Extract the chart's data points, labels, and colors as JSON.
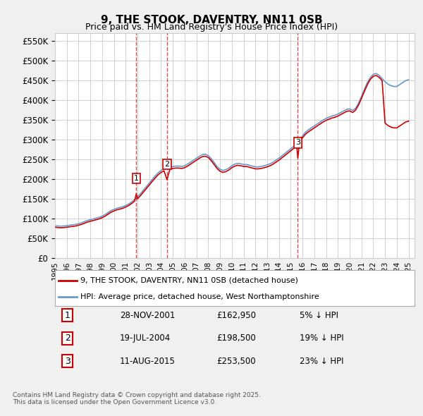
{
  "title": "9, THE STOOK, DAVENTRY, NN11 0SB",
  "subtitle": "Price paid vs. HM Land Registry's House Price Index (HPI)",
  "ylabel_ticks": [
    "£0",
    "£50K",
    "£100K",
    "£150K",
    "£200K",
    "£250K",
    "£300K",
    "£350K",
    "£400K",
    "£450K",
    "£500K",
    "£550K"
  ],
  "ylim": [
    0,
    570000
  ],
  "yticks": [
    0,
    50000,
    100000,
    150000,
    200000,
    250000,
    300000,
    350000,
    400000,
    450000,
    500000,
    550000
  ],
  "background_color": "#f0f0f0",
  "plot_bg_color": "#ffffff",
  "grid_color": "#d0d0d0",
  "line_color_red": "#cc0000",
  "line_color_blue": "#6699cc",
  "transaction_color": "#cc0000",
  "marker_label_bg": "#ffffff",
  "marker_label_border": "#cc0000",
  "legend_label_red": "9, THE STOOK, DAVENTRY, NN11 0SB (detached house)",
  "legend_label_blue": "HPI: Average price, detached house, West Northamptonshire",
  "transactions": [
    {
      "num": 1,
      "date_str": "28-NOV-2001",
      "price": 162950,
      "pct": "5%",
      "dir": "↓",
      "year": 2001.9
    },
    {
      "num": 2,
      "date_str": "19-JUL-2004",
      "price": 198500,
      "pct": "19%",
      "dir": "↓",
      "year": 2004.5
    },
    {
      "num": 3,
      "date_str": "11-AUG-2015",
      "price": 253500,
      "pct": "23%",
      "dir": "↓",
      "year": 2015.6
    }
  ],
  "footer_line1": "Contains HM Land Registry data © Crown copyright and database right 2025.",
  "footer_line2": "This data is licensed under the Open Government Licence v3.0.",
  "hpi_data": {
    "years": [
      1995.0,
      1995.25,
      1995.5,
      1995.75,
      1996.0,
      1996.25,
      1996.5,
      1996.75,
      1997.0,
      1997.25,
      1997.5,
      1997.75,
      1998.0,
      1998.25,
      1998.5,
      1998.75,
      1999.0,
      1999.25,
      1999.5,
      1999.75,
      2000.0,
      2000.25,
      2000.5,
      2000.75,
      2001.0,
      2001.25,
      2001.5,
      2001.75,
      2002.0,
      2002.25,
      2002.5,
      2002.75,
      2003.0,
      2003.25,
      2003.5,
      2003.75,
      2004.0,
      2004.25,
      2004.5,
      2004.75,
      2005.0,
      2005.25,
      2005.5,
      2005.75,
      2006.0,
      2006.25,
      2006.5,
      2006.75,
      2007.0,
      2007.25,
      2007.5,
      2007.75,
      2008.0,
      2008.25,
      2008.5,
      2008.75,
      2009.0,
      2009.25,
      2009.5,
      2009.75,
      2010.0,
      2010.25,
      2010.5,
      2010.75,
      2011.0,
      2011.25,
      2011.5,
      2011.75,
      2012.0,
      2012.25,
      2012.5,
      2012.75,
      2013.0,
      2013.25,
      2013.5,
      2013.75,
      2014.0,
      2014.25,
      2014.5,
      2014.75,
      2015.0,
      2015.25,
      2015.5,
      2015.75,
      2016.0,
      2016.25,
      2016.5,
      2016.75,
      2017.0,
      2017.25,
      2017.5,
      2017.75,
      2018.0,
      2018.25,
      2018.5,
      2018.75,
      2019.0,
      2019.25,
      2019.5,
      2019.75,
      2020.0,
      2020.25,
      2020.5,
      2020.75,
      2021.0,
      2021.25,
      2021.5,
      2021.75,
      2022.0,
      2022.25,
      2022.5,
      2022.75,
      2023.0,
      2023.25,
      2023.5,
      2023.75,
      2024.0,
      2024.25,
      2024.5,
      2024.75,
      2025.0
    ],
    "values": [
      82000,
      81000,
      80500,
      81000,
      82000,
      83000,
      84000,
      85000,
      87000,
      89000,
      92000,
      95000,
      97000,
      99000,
      101000,
      103000,
      106000,
      110000,
      115000,
      120000,
      123000,
      126000,
      128000,
      130000,
      133000,
      137000,
      142000,
      148000,
      155000,
      163000,
      172000,
      181000,
      190000,
      199000,
      208000,
      216000,
      222000,
      226000,
      228000,
      230000,
      232000,
      233000,
      233000,
      232000,
      234000,
      238000,
      243000,
      248000,
      253000,
      258000,
      262000,
      263000,
      260000,
      252000,
      242000,
      232000,
      225000,
      222000,
      224000,
      228000,
      234000,
      238000,
      240000,
      239000,
      237000,
      237000,
      235000,
      233000,
      231000,
      231000,
      232000,
      234000,
      236000,
      239000,
      243000,
      248000,
      253000,
      259000,
      265000,
      271000,
      277000,
      283000,
      291000,
      300000,
      310000,
      319000,
      325000,
      330000,
      335000,
      340000,
      345000,
      350000,
      354000,
      357000,
      360000,
      362000,
      365000,
      369000,
      373000,
      377000,
      378000,
      374000,
      380000,
      393000,
      410000,
      428000,
      445000,
      458000,
      466000,
      468000,
      463000,
      455000,
      447000,
      441000,
      437000,
      435000,
      435000,
      440000,
      445000,
      450000,
      452000
    ]
  },
  "red_data": {
    "years": [
      1995.0,
      1995.25,
      1995.5,
      1995.75,
      1996.0,
      1996.25,
      1996.5,
      1996.75,
      1997.0,
      1997.25,
      1997.5,
      1997.75,
      1998.0,
      1998.25,
      1998.5,
      1998.75,
      1999.0,
      1999.25,
      1999.5,
      1999.75,
      2000.0,
      2000.25,
      2000.5,
      2000.75,
      2001.0,
      2001.25,
      2001.5,
      2001.75,
      2001.9,
      2001.9,
      2002.0,
      2002.25,
      2002.5,
      2002.75,
      2003.0,
      2003.25,
      2003.5,
      2003.75,
      2004.0,
      2004.25,
      2004.5,
      2004.5,
      2004.75,
      2005.0,
      2005.25,
      2005.5,
      2005.75,
      2006.0,
      2006.25,
      2006.5,
      2006.75,
      2007.0,
      2007.25,
      2007.5,
      2007.75,
      2008.0,
      2008.25,
      2008.5,
      2008.75,
      2009.0,
      2009.25,
      2009.5,
      2009.75,
      2010.0,
      2010.25,
      2010.5,
      2010.75,
      2011.0,
      2011.25,
      2011.5,
      2011.75,
      2012.0,
      2012.25,
      2012.5,
      2012.75,
      2013.0,
      2013.25,
      2013.5,
      2013.75,
      2014.0,
      2014.25,
      2014.5,
      2014.75,
      2015.0,
      2015.25,
      2015.5,
      2015.6,
      2015.6,
      2015.75,
      2016.0,
      2016.25,
      2016.5,
      2016.75,
      2017.0,
      2017.25,
      2017.5,
      2017.75,
      2018.0,
      2018.25,
      2018.5,
      2018.75,
      2019.0,
      2019.25,
      2019.5,
      2019.75,
      2020.0,
      2020.25,
      2020.5,
      2020.75,
      2021.0,
      2021.25,
      2021.5,
      2021.75,
      2022.0,
      2022.25,
      2022.5,
      2022.75,
      2023.0,
      2023.25,
      2023.5,
      2023.75,
      2024.0,
      2024.25,
      2024.5,
      2024.75,
      2025.0
    ],
    "values": [
      78000,
      77000,
      76500,
      77000,
      78000,
      79000,
      80000,
      81000,
      83000,
      85000,
      88000,
      91000,
      93000,
      95000,
      97000,
      99000,
      102000,
      106000,
      111000,
      116000,
      119000,
      122000,
      124000,
      126000,
      129000,
      133000,
      138000,
      144000,
      162950,
      162950,
      150000,
      158000,
      167000,
      176000,
      185000,
      194000,
      203000,
      211000,
      217000,
      221000,
      198500,
      198500,
      225000,
      227000,
      228000,
      228000,
      227000,
      229000,
      233000,
      238000,
      243000,
      248000,
      253000,
      257000,
      258000,
      255000,
      247000,
      237000,
      227000,
      220000,
      217000,
      219000,
      223000,
      229000,
      233000,
      235000,
      234000,
      232000,
      232000,
      230000,
      228000,
      226000,
      226000,
      227000,
      229000,
      231000,
      234000,
      238000,
      243000,
      248000,
      254000,
      260000,
      266000,
      272000,
      278000,
      286000,
      253500,
      253500,
      295000,
      305000,
      314000,
      320000,
      325000,
      330000,
      335000,
      340000,
      345000,
      349000,
      352000,
      355000,
      357000,
      360000,
      364000,
      368000,
      372000,
      373000,
      369000,
      375000,
      388000,
      405000,
      423000,
      440000,
      453000,
      461000,
      463000,
      458000,
      450000,
      342000,
      336000,
      332000,
      330000,
      330000,
      335000,
      340000,
      345000,
      347000
    ]
  }
}
